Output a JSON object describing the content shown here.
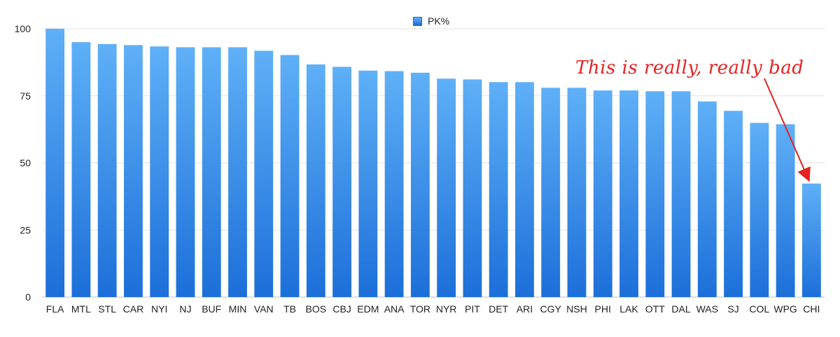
{
  "chart_data": {
    "type": "bar",
    "categories": [
      "FLA",
      "MTL",
      "STL",
      "CAR",
      "NYI",
      "NJ",
      "BUF",
      "MIN",
      "VAN",
      "TB",
      "BOS",
      "CBJ",
      "EDM",
      "ANA",
      "TOR",
      "NYR",
      "PIT",
      "DET",
      "ARI",
      "CGY",
      "NSH",
      "PHI",
      "LAK",
      "OTT",
      "DAL",
      "WAS",
      "SJ",
      "COL",
      "WPG",
      "CHI"
    ],
    "series": [
      {
        "name": "PK%",
        "values": [
          100,
          95,
          94.3,
          93.9,
          93.4,
          93.1,
          93.1,
          93.1,
          91.8,
          90.2,
          86.7,
          85.8,
          84.4,
          84.2,
          83.6,
          81.4,
          81.1,
          80.1,
          80.1,
          78,
          78,
          77,
          77,
          76.7,
          76.7,
          72.9,
          69.4,
          64.9,
          64.4,
          42.3
        ]
      }
    ],
    "yticks": [
      0,
      25,
      50,
      75,
      100
    ],
    "ylim": [
      0,
      100
    ],
    "grid": true,
    "legend": "top-center",
    "annotation": "This is really, really bad",
    "colors": {
      "bar_top": "#5fb0f7",
      "bar_bottom": "#1c6fd9",
      "annotation": "#e52222",
      "grid": "#e3e3e3"
    }
  }
}
